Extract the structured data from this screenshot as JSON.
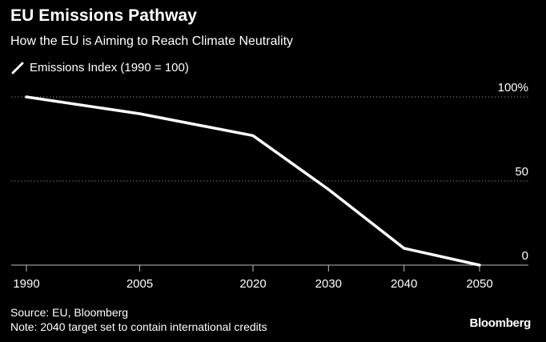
{
  "title": "EU Emissions Pathway",
  "subtitle": "How the EU is Aiming to Reach Climate Neutrality",
  "legend": {
    "label": "Emissions Index (1990 = 100)",
    "swatch_icon": "diagonal-line-icon"
  },
  "footer": {
    "source": "Source: EU, Bloomberg",
    "note": "Note: 2040 target set to contain international credits"
  },
  "brand": "Bloomberg",
  "colors": {
    "background": "#000000",
    "line": "#ffffff",
    "grid": "#7a7a7a",
    "text": "#ffffff"
  },
  "chart_data": {
    "type": "line",
    "title": "EU Emissions Pathway",
    "subtitle": "How the EU is Aiming to Reach Climate Neutrality",
    "x": [
      1990,
      2005,
      2020,
      2030,
      2040,
      2050
    ],
    "x_tick_labels": [
      "1990",
      "2005",
      "2020",
      "2030",
      "2040",
      "2050"
    ],
    "series": [
      {
        "name": "Emissions Index (1990 = 100)",
        "values": [
          100,
          90,
          77,
          45,
          10,
          0
        ]
      }
    ],
    "y_ticks": [
      0,
      50,
      100
    ],
    "y_tick_labels": [
      "0",
      "50",
      "100%"
    ],
    "ylim": [
      0,
      100
    ],
    "xlim": [
      1990,
      2050
    ],
    "grid": "horizontal dotted",
    "y_axis_side": "right",
    "legend_position": "top-left"
  }
}
